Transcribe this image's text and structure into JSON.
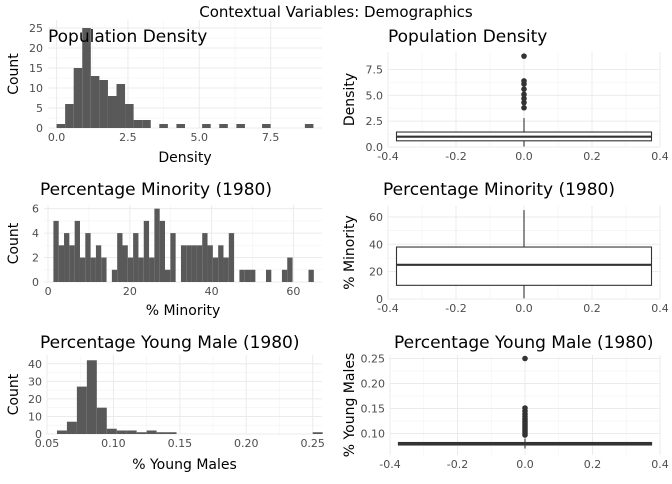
{
  "figure": {
    "title": "Contextual Variables: Demographics"
  },
  "chart_data": [
    {
      "id": "density_hist",
      "type": "bar",
      "title": "Population Density",
      "xlabel": "Density",
      "ylabel": "Count",
      "xlim": [
        -0.3,
        9.3
      ],
      "ylim": [
        0,
        27
      ],
      "xticks": [
        0,
        2.5,
        5,
        7.5
      ],
      "xtick_labels": [
        "0.0",
        "2.5",
        "5.0",
        "7.5"
      ],
      "yticks": [
        0,
        5,
        10,
        15,
        20,
        25
      ],
      "bin_width": 0.3,
      "bins": [
        {
          "x0": 0.0,
          "count": 1
        },
        {
          "x0": 0.3,
          "count": 6
        },
        {
          "x0": 0.6,
          "count": 15
        },
        {
          "x0": 0.9,
          "count": 25
        },
        {
          "x0": 1.2,
          "count": 13
        },
        {
          "x0": 1.5,
          "count": 12
        },
        {
          "x0": 1.8,
          "count": 8
        },
        {
          "x0": 2.1,
          "count": 11
        },
        {
          "x0": 2.4,
          "count": 6
        },
        {
          "x0": 2.7,
          "count": 2
        },
        {
          "x0": 3.0,
          "count": 2
        },
        {
          "x0": 3.6,
          "count": 1
        },
        {
          "x0": 4.2,
          "count": 1
        },
        {
          "x0": 5.1,
          "count": 1
        },
        {
          "x0": 5.7,
          "count": 1
        },
        {
          "x0": 6.3,
          "count": 1
        },
        {
          "x0": 7.2,
          "count": 1
        },
        {
          "x0": 8.7,
          "count": 1
        }
      ]
    },
    {
      "id": "density_box",
      "type": "box",
      "title": "Population Density",
      "xlabel": "",
      "ylabel": "Density",
      "xlim": [
        -0.4,
        0.4
      ],
      "ylim": [
        0,
        9.2
      ],
      "xticks": [
        -0.4,
        -0.2,
        0.0,
        0.2,
        0.4
      ],
      "xtick_labels": [
        "-0.4",
        "-0.2",
        "0.0",
        "0.2",
        "0.4"
      ],
      "yticks": [
        0,
        2.5,
        5,
        7.5
      ],
      "ytick_labels": [
        "0.0",
        "2.5",
        "5.0",
        "7.5"
      ],
      "box": {
        "x_from": -0.375,
        "x_to": 0.375,
        "q1": 0.6,
        "median": 1.0,
        "q3": 1.45,
        "whisker_low": 0.05,
        "whisker_high": 2.8
      },
      "outliers": [
        3.8,
        4.3,
        4.7,
        5.1,
        5.6,
        6.1,
        6.4,
        8.8
      ]
    },
    {
      "id": "minority_hist",
      "type": "bar",
      "title": "Percentage Minority (1980)",
      "xlabel": "% Minority",
      "ylabel": "Count",
      "xlim": [
        -1,
        67
      ],
      "ylim": [
        0,
        6.3
      ],
      "xticks": [
        0,
        20,
        40,
        60
      ],
      "xtick_labels": [
        "0",
        "20",
        "40",
        "60"
      ],
      "yticks": [
        0,
        2,
        4,
        6
      ],
      "bin_width": 1.3,
      "bins": [
        {
          "x0": 1.3,
          "count": 5
        },
        {
          "x0": 2.6,
          "count": 3
        },
        {
          "x0": 3.9,
          "count": 4
        },
        {
          "x0": 5.2,
          "count": 3
        },
        {
          "x0": 6.5,
          "count": 5
        },
        {
          "x0": 7.8,
          "count": 2
        },
        {
          "x0": 9.1,
          "count": 4
        },
        {
          "x0": 10.4,
          "count": 2
        },
        {
          "x0": 11.7,
          "count": 3
        },
        {
          "x0": 13.0,
          "count": 2
        },
        {
          "x0": 15.6,
          "count": 1
        },
        {
          "x0": 16.9,
          "count": 4
        },
        {
          "x0": 18.2,
          "count": 3
        },
        {
          "x0": 19.5,
          "count": 2
        },
        {
          "x0": 20.8,
          "count": 4
        },
        {
          "x0": 22.1,
          "count": 2
        },
        {
          "x0": 23.4,
          "count": 5
        },
        {
          "x0": 24.7,
          "count": 2
        },
        {
          "x0": 26.0,
          "count": 6
        },
        {
          "x0": 27.3,
          "count": 5
        },
        {
          "x0": 28.6,
          "count": 1
        },
        {
          "x0": 29.9,
          "count": 4
        },
        {
          "x0": 32.5,
          "count": 3
        },
        {
          "x0": 33.8,
          "count": 3
        },
        {
          "x0": 35.1,
          "count": 3
        },
        {
          "x0": 36.4,
          "count": 3
        },
        {
          "x0": 37.7,
          "count": 4
        },
        {
          "x0": 39.0,
          "count": 3
        },
        {
          "x0": 40.3,
          "count": 2
        },
        {
          "x0": 41.6,
          "count": 3
        },
        {
          "x0": 42.9,
          "count": 2
        },
        {
          "x0": 44.2,
          "count": 4
        },
        {
          "x0": 46.8,
          "count": 1
        },
        {
          "x0": 48.1,
          "count": 1
        },
        {
          "x0": 49.4,
          "count": 1
        },
        {
          "x0": 53.3,
          "count": 1
        },
        {
          "x0": 57.2,
          "count": 1
        },
        {
          "x0": 58.5,
          "count": 2
        },
        {
          "x0": 63.7,
          "count": 1
        }
      ]
    },
    {
      "id": "minority_box",
      "type": "box",
      "title": "Percentage Minority (1980)",
      "xlabel": "",
      "ylabel": "% Minority",
      "xlim": [
        -0.4,
        0.4
      ],
      "ylim": [
        0,
        68
      ],
      "xticks": [
        -0.4,
        -0.2,
        0.0,
        0.2,
        0.4
      ],
      "xtick_labels": [
        "-0.4",
        "-0.2",
        "0.0",
        "0.2",
        "0.4"
      ],
      "yticks": [
        0,
        20,
        40,
        60
      ],
      "ytick_labels": [
        "0",
        "20",
        "40",
        "60"
      ],
      "box": {
        "x_from": -0.375,
        "x_to": 0.375,
        "q1": 10,
        "median": 25,
        "q3": 38,
        "whisker_low": 0.5,
        "whisker_high": 65
      },
      "outliers": []
    },
    {
      "id": "youngmale_hist",
      "type": "bar",
      "title": "Percentage Young Male (1980)",
      "xlabel": "% Young Males",
      "ylabel": "Count",
      "xlim": [
        0.05,
        0.257
      ],
      "ylim": [
        0,
        45
      ],
      "xticks": [
        0.05,
        0.1,
        0.15,
        0.2,
        0.25
      ],
      "xtick_labels": [
        "0.05",
        "0.10",
        "0.15",
        "0.20",
        "0.25"
      ],
      "yticks": [
        0,
        10,
        20,
        30,
        40
      ],
      "bin_width": 0.0075,
      "bins": [
        {
          "x0": 0.0575,
          "count": 2
        },
        {
          "x0": 0.065,
          "count": 7
        },
        {
          "x0": 0.0725,
          "count": 27
        },
        {
          "x0": 0.08,
          "count": 42
        },
        {
          "x0": 0.0875,
          "count": 15
        },
        {
          "x0": 0.095,
          "count": 3
        },
        {
          "x0": 0.1025,
          "count": 2
        },
        {
          "x0": 0.11,
          "count": 2
        },
        {
          "x0": 0.1175,
          "count": 1
        },
        {
          "x0": 0.125,
          "count": 2
        },
        {
          "x0": 0.1325,
          "count": 1
        },
        {
          "x0": 0.14,
          "count": 1
        },
        {
          "x0": 0.25,
          "count": 1
        }
      ]
    },
    {
      "id": "youngmale_box",
      "type": "box",
      "title": "Percentage Young Male (1980)",
      "xlabel": "",
      "ylabel": "% Young Males",
      "xlim": [
        -0.4,
        0.4
      ],
      "ylim": [
        0.057,
        0.257
      ],
      "xticks": [
        -0.4,
        -0.2,
        0.0,
        0.2,
        0.4
      ],
      "xtick_labels": [
        "-0.4",
        "-0.2",
        "0.0",
        "0.2",
        "0.4"
      ],
      "yticks": [
        0.1,
        0.15,
        0.2,
        0.25
      ],
      "ytick_labels": [
        "0.10",
        "0.15",
        "0.20",
        "0.25"
      ],
      "box": {
        "x_from": -0.375,
        "x_to": 0.375,
        "q1": 0.077,
        "median": 0.079,
        "q3": 0.082,
        "whisker_low": 0.07,
        "whisker_high": 0.09
      },
      "outliers": [
        0.097,
        0.101,
        0.105,
        0.109,
        0.113,
        0.117,
        0.121,
        0.125,
        0.129,
        0.134,
        0.139,
        0.145,
        0.151,
        0.25
      ]
    }
  ]
}
